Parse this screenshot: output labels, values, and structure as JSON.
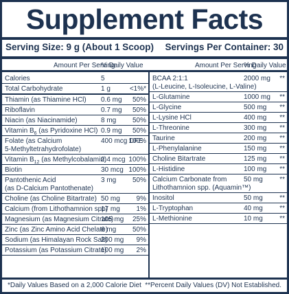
{
  "title": "Supplement Facts",
  "serving_size": "Serving Size: 9 g (About 1 Scoop)",
  "servings_per_container": "Servings Per Container: 30",
  "header": {
    "amount_per_serving": "Amount Per Serving",
    "daily_value": "% Daily Value"
  },
  "left_rows": [
    {
      "name": "Calories",
      "amount": "5",
      "dv": ""
    },
    {
      "name": "Total Carbohydrate",
      "amount": "1 g",
      "dv": "<1%*"
    },
    {
      "name": "Thiamin (as Thiamine HCl)",
      "amount": "0.6 mg",
      "dv": "50%"
    },
    {
      "name": "Riboflavin",
      "amount": "0.7 mg",
      "dv": "50%"
    },
    {
      "name": "Niacin (as Niacinamide)",
      "amount": "8 mg",
      "dv": "50%"
    },
    {
      "name_pre": "Vitamin B",
      "name_sub": "6",
      "name_post": " (as Pyridoxine HCl)",
      "amount": "0.9 mg",
      "dv": "50%"
    },
    {
      "name": "Folate (as Calcium",
      "name2": "5-Methyltetrahydrofolate)",
      "amount": "400 mcg DFE",
      "dv": "100%"
    },
    {
      "name_pre": "Vitamin B",
      "name_sub": "12",
      "name_post": " (as Methylcobalamin)",
      "amount": "2.4 mcg",
      "dv": "100%"
    },
    {
      "name": "Biotin",
      "amount": "30 mcg",
      "dv": "100%"
    },
    {
      "name": "Pantothenic Acid",
      "name2": "(as D-Calcium Pantothenate)",
      "amount": "3 mg",
      "dv": "50%"
    },
    {
      "name": "Choline (as Choline Bitartrate)",
      "amount": "50 mg",
      "dv": "9%"
    },
    {
      "name": "Calcium (from Lithothamnion spp)",
      "amount": "17 mg",
      "dv": "1%"
    },
    {
      "name": "Magnesium (as Magnesium Citrate)",
      "amount": "105 mg",
      "dv": "25%"
    },
    {
      "name": "Zinc (as Zinc Amino Acid Chelate)",
      "amount": "6 mg",
      "dv": "50%"
    },
    {
      "name": "Sodium (as Himalayan Rock Salt)",
      "amount": "200 mg",
      "dv": "9%"
    },
    {
      "name": "Potassium (as Potassium Citrate)",
      "amount": "100 mg",
      "dv": "2%"
    }
  ],
  "right_rows": [
    {
      "name": "BCAA 2:1:1",
      "name2": "(L-Leucine, L-Isoleucine, L-Valine)",
      "amount": "2000 mg",
      "dv": "**"
    },
    {
      "name": "L-Glutamine",
      "amount": "1000 mg",
      "dv": "**"
    },
    {
      "name": "L-Glycine",
      "amount": "500 mg",
      "dv": "**"
    },
    {
      "name": "L-Lysine HCl",
      "amount": "400 mg",
      "dv": "**"
    },
    {
      "name": "L-Threonine",
      "amount": "300 mg",
      "dv": "**"
    },
    {
      "name": "Taurine",
      "amount": "200 mg",
      "dv": "**"
    },
    {
      "name": "L-Phenylalanine",
      "amount": "150 mg",
      "dv": "**"
    },
    {
      "name": "Choline Bitartrate",
      "amount": "125 mg",
      "dv": "**"
    },
    {
      "name": "L-Histidine",
      "amount": "100 mg",
      "dv": "**"
    },
    {
      "name": "Calcium Carbonate from",
      "name2": "Lithothamnion spp. (Aquamin™)",
      "amount": "50 mg",
      "dv": "**"
    },
    {
      "name": "Inositol",
      "amount": "50 mg",
      "dv": "**"
    },
    {
      "name": "L-Tryptophan",
      "amount": "40 mg",
      "dv": "**"
    },
    {
      "name": "L-Methionine",
      "amount": "10 mg",
      "dv": "**"
    }
  ],
  "footnote_left": "*Daily Values Based on a 2,000 Calorie Diet",
  "footnote_right": "**Percent Daily Values (DV) Not Established."
}
